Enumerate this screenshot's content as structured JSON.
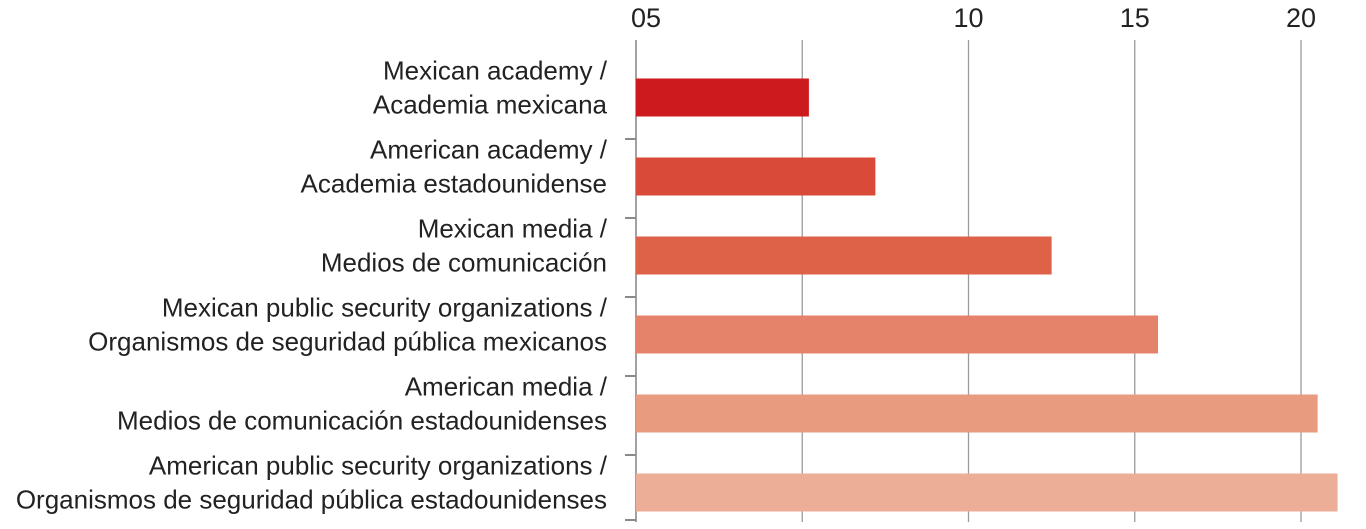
{
  "chart_data": {
    "type": "bar",
    "orientation": "horizontal",
    "title": "",
    "xlabel": "",
    "ylabel": "",
    "xlim": [
      0,
      21.2
    ],
    "grid": true,
    "ticks": [
      {
        "value": 0,
        "label": "05"
      },
      {
        "value": 5,
        "label": ""
      },
      {
        "value": 10,
        "label": "10"
      },
      {
        "value": 15,
        "label": "15"
      },
      {
        "value": 20,
        "label": "20"
      }
    ],
    "categories": [
      [
        "Mexican academy /",
        "Academia mexicana"
      ],
      [
        "American academy /",
        "Academia estadounidense"
      ],
      [
        "Mexican media /",
        "Medios de comunicación"
      ],
      [
        "Mexican public security organizations /",
        "Organismos de seguridad pública mexicanos"
      ],
      [
        "American media /",
        "Medios de comunicación estadounidenses"
      ],
      [
        "American public security organizations /",
        "Organismos de seguridad pública estadounidenses"
      ]
    ],
    "values": [
      5.2,
      7.2,
      12.5,
      15.7,
      20.5,
      21.1
    ],
    "colors": [
      "#cc1a1e",
      "#d94a38",
      "#de6248",
      "#e4826a",
      "#e99b80",
      "#ecae96"
    ]
  }
}
